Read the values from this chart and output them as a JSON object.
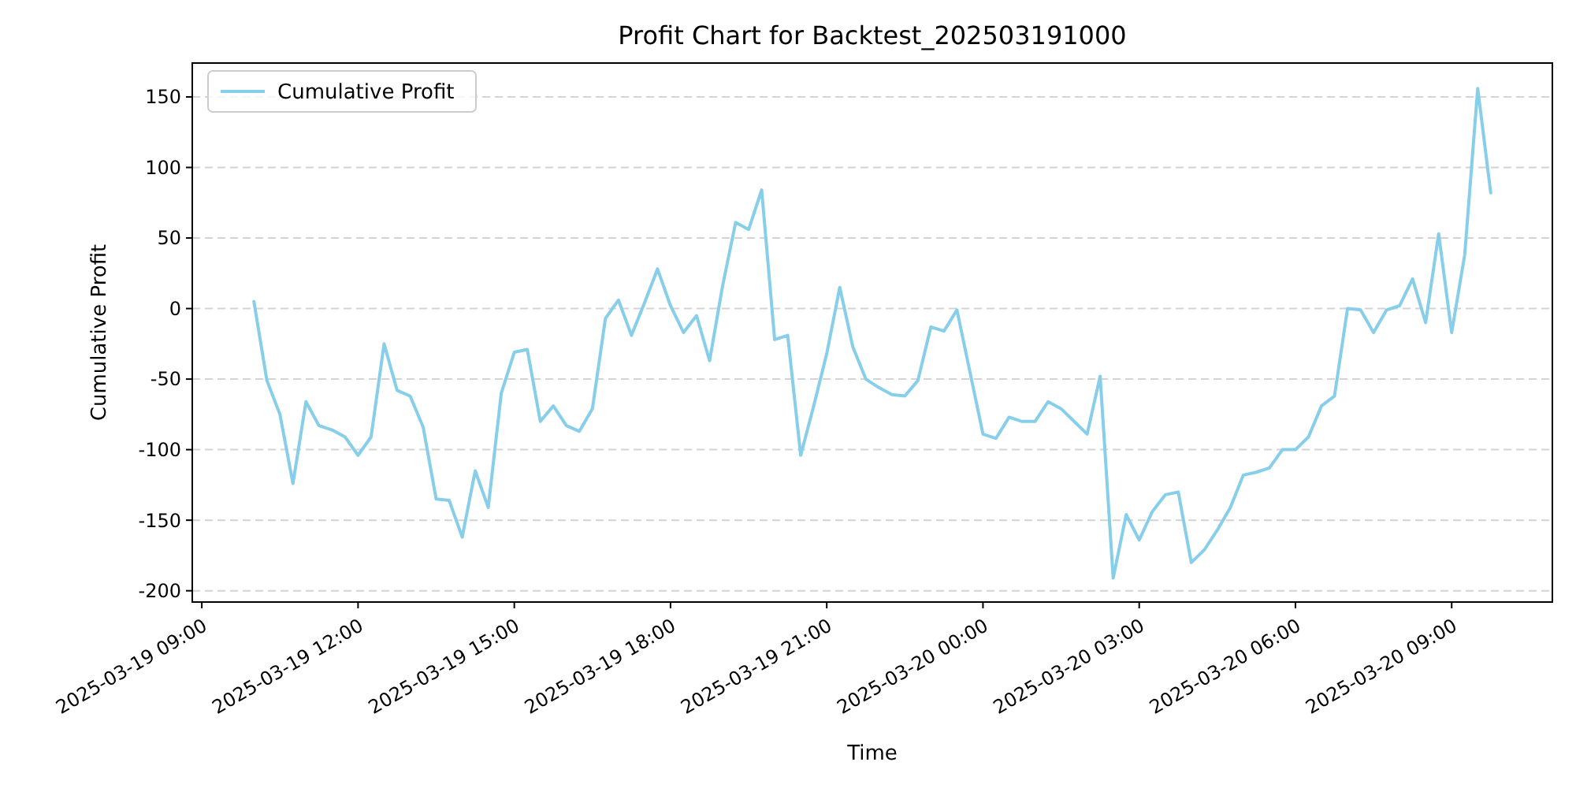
{
  "chart_data": {
    "type": "line",
    "title": "Profit Chart for Backtest_202503191000",
    "xlabel": "Time",
    "ylabel": "Cumulative Profit",
    "x": [
      "2025-03-19T10:00",
      "2025-03-19T10:15",
      "2025-03-19T10:30",
      "2025-03-19T10:45",
      "2025-03-19T11:00",
      "2025-03-19T11:15",
      "2025-03-19T11:30",
      "2025-03-19T11:45",
      "2025-03-19T12:00",
      "2025-03-19T12:15",
      "2025-03-19T12:30",
      "2025-03-19T12:45",
      "2025-03-19T13:00",
      "2025-03-19T13:15",
      "2025-03-19T13:30",
      "2025-03-19T13:45",
      "2025-03-19T14:00",
      "2025-03-19T14:15",
      "2025-03-19T14:30",
      "2025-03-19T14:45",
      "2025-03-19T15:00",
      "2025-03-19T15:15",
      "2025-03-19T15:30",
      "2025-03-19T15:45",
      "2025-03-19T16:00",
      "2025-03-19T16:15",
      "2025-03-19T16:30",
      "2025-03-19T16:45",
      "2025-03-19T17:00",
      "2025-03-19T17:15",
      "2025-03-19T17:30",
      "2025-03-19T17:45",
      "2025-03-19T18:00",
      "2025-03-19T18:15",
      "2025-03-19T18:30",
      "2025-03-19T18:45",
      "2025-03-19T19:00",
      "2025-03-19T19:15",
      "2025-03-19T19:30",
      "2025-03-19T19:45",
      "2025-03-19T20:00",
      "2025-03-19T20:15",
      "2025-03-19T20:30",
      "2025-03-19T20:45",
      "2025-03-19T21:00",
      "2025-03-19T21:15",
      "2025-03-19T21:30",
      "2025-03-19T21:45",
      "2025-03-19T22:00",
      "2025-03-19T22:15",
      "2025-03-19T22:30",
      "2025-03-19T22:45",
      "2025-03-19T23:00",
      "2025-03-19T23:15",
      "2025-03-19T23:30",
      "2025-03-19T23:45",
      "2025-03-20T00:00",
      "2025-03-20T00:15",
      "2025-03-20T00:30",
      "2025-03-20T00:45",
      "2025-03-20T01:00",
      "2025-03-20T01:15",
      "2025-03-20T01:30",
      "2025-03-20T01:45",
      "2025-03-20T02:00",
      "2025-03-20T02:15",
      "2025-03-20T02:30",
      "2025-03-20T02:45",
      "2025-03-20T03:00",
      "2025-03-20T03:15",
      "2025-03-20T03:30",
      "2025-03-20T03:45",
      "2025-03-20T04:00",
      "2025-03-20T04:15",
      "2025-03-20T04:30",
      "2025-03-20T04:45",
      "2025-03-20T05:00",
      "2025-03-20T05:15",
      "2025-03-20T05:30",
      "2025-03-20T05:45",
      "2025-03-20T06:00",
      "2025-03-20T06:15",
      "2025-03-20T06:30",
      "2025-03-20T06:45",
      "2025-03-20T07:00",
      "2025-03-20T07:15",
      "2025-03-20T07:30",
      "2025-03-20T07:45",
      "2025-03-20T08:00",
      "2025-03-20T08:15",
      "2025-03-20T08:30",
      "2025-03-20T08:45",
      "2025-03-20T09:00",
      "2025-03-20T09:15",
      "2025-03-20T09:30",
      "2025-03-20T09:45"
    ],
    "series": [
      {
        "name": "Cumulative Profit",
        "color": "#87ceeb",
        "values": [
          5,
          -51,
          -75,
          -124,
          -66,
          -83,
          -86,
          -91,
          -104,
          -91,
          -25,
          -58,
          -62,
          -84,
          -135,
          -136,
          -162,
          -115,
          -141,
          -60,
          -31,
          -29,
          -80,
          -69,
          -83,
          -87,
          -71,
          -7,
          6,
          -19,
          4,
          28,
          2,
          -17,
          -5,
          -37,
          16,
          61,
          56,
          84,
          -22,
          -19,
          -104,
          -69,
          -32,
          15,
          -27,
          -50,
          -56,
          -61,
          -62,
          -51,
          -13,
          -16,
          -1,
          -45,
          -89,
          -92,
          -77,
          -80,
          -80,
          -66,
          -71,
          -80,
          -89,
          -48,
          -191,
          -146,
          -164,
          -144,
          -132,
          -130,
          -180,
          -171,
          -157,
          -141,
          -118,
          -116,
          -113,
          -100,
          -100,
          -91,
          -69,
          -62,
          0,
          -1,
          -17,
          -1,
          2,
          21,
          -10,
          53,
          -17,
          38,
          156,
          82
        ]
      }
    ],
    "xlim": [
      "2025-03-19T08:49",
      "2025-03-20T10:56"
    ],
    "xticks": [
      {
        "value": "2025-03-19T09:00",
        "label": "2025-03-19 09:00"
      },
      {
        "value": "2025-03-19T12:00",
        "label": "2025-03-19 12:00"
      },
      {
        "value": "2025-03-19T15:00",
        "label": "2025-03-19 15:00"
      },
      {
        "value": "2025-03-19T18:00",
        "label": "2025-03-19 18:00"
      },
      {
        "value": "2025-03-19T21:00",
        "label": "2025-03-19 21:00"
      },
      {
        "value": "2025-03-20T00:00",
        "label": "2025-03-20 00:00"
      },
      {
        "value": "2025-03-20T03:00",
        "label": "2025-03-20 03:00"
      },
      {
        "value": "2025-03-20T06:00",
        "label": "2025-03-20 06:00"
      },
      {
        "value": "2025-03-20T09:00",
        "label": "2025-03-20 09:00"
      }
    ],
    "ylim": [
      -208,
      174
    ],
    "yticks": [
      -200,
      -150,
      -100,
      -50,
      0,
      50,
      100,
      150
    ],
    "grid": "y",
    "legend": "top left",
    "marker": "none",
    "line_style": "solid"
  }
}
